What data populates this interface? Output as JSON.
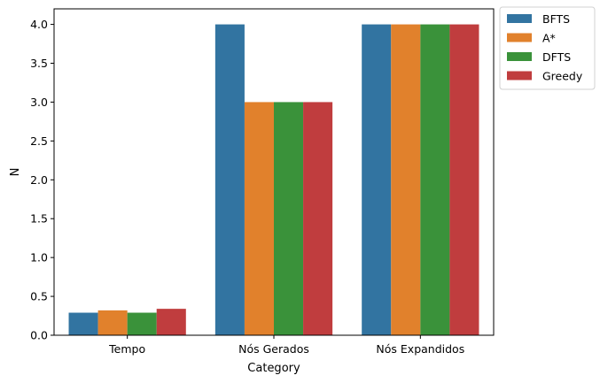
{
  "chart_data": {
    "type": "bar",
    "categories": [
      "Tempo",
      "Nós Gerados",
      "Nós Expandidos"
    ],
    "series": [
      {
        "name": "BFTS",
        "color": "#3274a1",
        "values": [
          0.29,
          4.0,
          4.0
        ]
      },
      {
        "name": "A*",
        "color": "#e1812c",
        "values": [
          0.32,
          3.0,
          4.0
        ]
      },
      {
        "name": "DFTS",
        "color": "#3a923a",
        "values": [
          0.29,
          3.0,
          4.0
        ]
      },
      {
        "name": "Greedy",
        "color": "#c03d3e",
        "values": [
          0.34,
          3.0,
          4.0
        ]
      }
    ],
    "xlabel": "Category",
    "ylabel": "N",
    "ylim": [
      0,
      4.2
    ],
    "yticks": [
      "0.0",
      "0.5",
      "1.0",
      "1.5",
      "2.0",
      "2.5",
      "3.0",
      "3.5",
      "4.0"
    ],
    "grid": false,
    "legend_position": "outside-top-right"
  }
}
